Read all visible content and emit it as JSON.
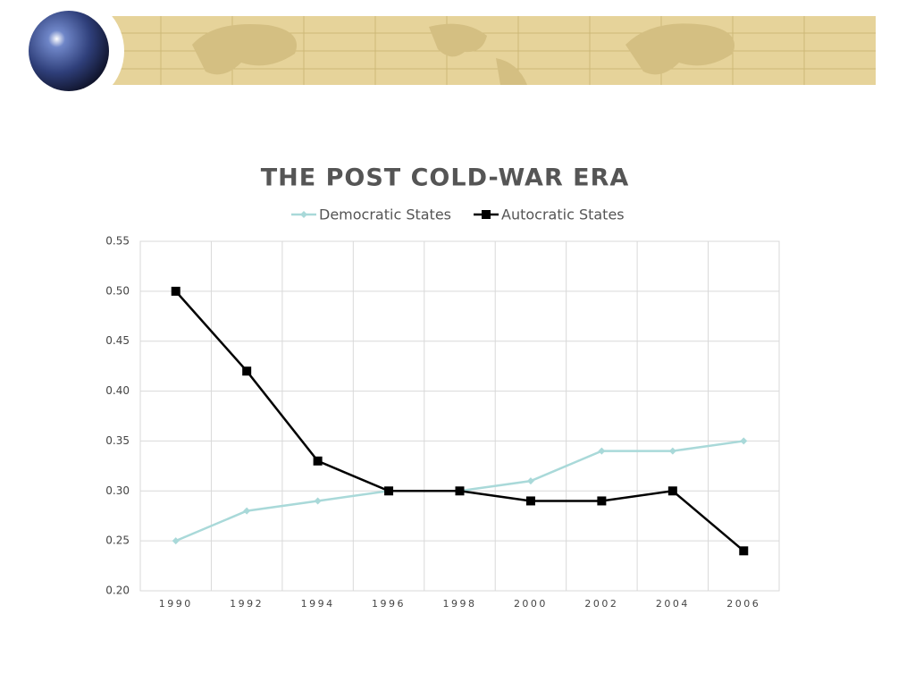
{
  "chart_data": {
    "type": "line",
    "title": "THE POST COLD-WAR ERA",
    "categories": [
      "1990",
      "1992",
      "1994",
      "1996",
      "1998",
      "2000",
      "2002",
      "2004",
      "2006"
    ],
    "series": [
      {
        "name": "Democratic States",
        "color": "#a9d9d9",
        "marker": "diamond",
        "values": [
          0.25,
          0.28,
          0.29,
          0.3,
          0.3,
          0.31,
          0.34,
          0.34,
          0.35
        ]
      },
      {
        "name": "Autocratic States",
        "color": "#000000",
        "marker": "square",
        "values": [
          0.5,
          0.42,
          0.33,
          0.3,
          0.3,
          0.29,
          0.29,
          0.3,
          0.24
        ]
      }
    ],
    "ylim": [
      0.2,
      0.55
    ],
    "yticks": [
      {
        "value": 0.2,
        "label": "0.20"
      },
      {
        "value": 0.25,
        "label": "0.25"
      },
      {
        "value": 0.3,
        "label": "0.30"
      },
      {
        "value": 0.35,
        "label": "0.35"
      },
      {
        "value": 0.4,
        "label": "0.40"
      },
      {
        "value": 0.45,
        "label": "0.45"
      },
      {
        "value": 0.5,
        "label": "0.50"
      },
      {
        "value": 0.55,
        "label": "0.55"
      }
    ],
    "grid": true,
    "legend": "top"
  }
}
